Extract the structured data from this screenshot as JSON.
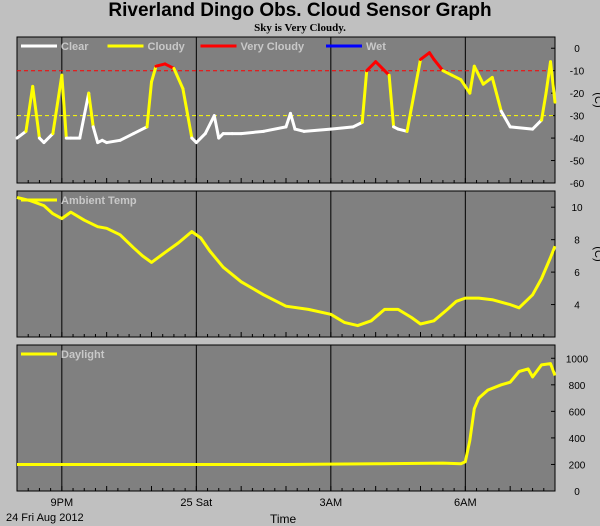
{
  "header": {
    "title": "Riverland Dingo Obs. Cloud Sensor Graph",
    "subtitle": "Sky is Very Cloudy."
  },
  "footer": {
    "date": "24 Fri Aug 2012",
    "time_label": "Time"
  },
  "colors": {
    "background": "#c0c0c0",
    "plot_bg": "#808080",
    "grid": "#000000",
    "clear": "#ffffff",
    "cloudy": "#ffff00",
    "very_cloudy": "#ff0000",
    "wet": "#0000ff",
    "threshold_very_cloudy": "#ff0000",
    "threshold_cloudy": "#ffff00"
  },
  "chart_data": [
    {
      "type": "line",
      "name": "sky-temperature",
      "legend": [
        "Clear",
        "Cloudy",
        "Very Cloudy",
        "Wet"
      ],
      "ylabel": "(C)",
      "yticks": [
        0,
        -10,
        -20,
        -30,
        -40,
        -50,
        -60
      ],
      "ylim": [
        -60,
        5
      ],
      "x_major_ticks": [
        {
          "x": 1.0,
          "label": "9PM"
        },
        {
          "x": 4.0,
          "label": "25 Sat"
        },
        {
          "x": 7.0,
          "label": "3AM"
        },
        {
          "x": 10.0,
          "label": "6AM"
        }
      ],
      "xlim": [
        0,
        12.0
      ],
      "thresholds": [
        {
          "y": -10,
          "kind": "very_cloudy"
        },
        {
          "y": -30,
          "kind": "cloudy"
        }
      ],
      "x": [
        0.0,
        0.2,
        0.35,
        0.5,
        0.6,
        0.8,
        1.0,
        1.1,
        1.2,
        1.4,
        1.6,
        1.7,
        1.8,
        1.9,
        2.0,
        2.3,
        2.6,
        2.9,
        3.0,
        3.1,
        3.3,
        3.5,
        3.7,
        3.9,
        4.0,
        4.2,
        4.4,
        4.5,
        4.6,
        4.8,
        5.0,
        5.5,
        6.0,
        6.1,
        6.2,
        6.4,
        7.0,
        7.5,
        7.7,
        7.8,
        8.0,
        8.3,
        8.4,
        8.5,
        8.7,
        9.0,
        9.2,
        9.3,
        9.5,
        9.7,
        9.9,
        10.1,
        10.2,
        10.4,
        10.6,
        10.8,
        11.0,
        11.5,
        11.7,
        11.8,
        11.9,
        12.0
      ],
      "values": [
        -40,
        -37,
        -17,
        -40,
        -42,
        -38,
        -12,
        -40,
        -40,
        -40,
        -20,
        -35,
        -42,
        -41,
        -42,
        -41,
        -38,
        -35,
        -15,
        -8,
        -7,
        -9,
        -18,
        -40,
        -42,
        -38,
        -30,
        -40,
        -38,
        -38,
        -38,
        -37,
        -35,
        -29,
        -36,
        -37,
        -36,
        -35,
        -33,
        -10,
        -6,
        -12,
        -35,
        -36,
        -37,
        -5,
        -2,
        -5,
        -10,
        -12,
        -14,
        -20,
        -8,
        -16,
        -13,
        -28,
        -35,
        -36,
        -32,
        -20,
        -6,
        -24
      ]
    },
    {
      "type": "line",
      "name": "ambient-temperature",
      "legend": [
        "Ambient Temp"
      ],
      "ylabel": "(C)",
      "yticks": [
        4,
        6,
        8,
        10
      ],
      "ylim": [
        2,
        11
      ],
      "x_major_ticks": [
        {
          "x": 1.0,
          "label": "9PM"
        },
        {
          "x": 4.0,
          "label": "25 Sat"
        },
        {
          "x": 7.0,
          "label": "3AM"
        },
        {
          "x": 10.0,
          "label": "6AM"
        }
      ],
      "xlim": [
        0,
        12.0
      ],
      "x": [
        0.0,
        0.3,
        0.6,
        0.8,
        1.0,
        1.2,
        1.5,
        1.8,
        2.0,
        2.3,
        2.6,
        2.8,
        3.0,
        3.3,
        3.6,
        3.9,
        4.1,
        4.3,
        4.6,
        5.0,
        5.5,
        6.0,
        6.5,
        7.0,
        7.3,
        7.6,
        7.9,
        8.2,
        8.5,
        8.8,
        9.0,
        9.3,
        9.6,
        9.8,
        10.0,
        10.3,
        10.6,
        11.0,
        11.2,
        11.5,
        11.7,
        11.9,
        12.0
      ],
      "values": [
        10.6,
        10.4,
        10.1,
        9.6,
        9.3,
        9.7,
        9.2,
        8.8,
        8.7,
        8.3,
        7.5,
        7.0,
        6.6,
        7.2,
        7.8,
        8.5,
        8.1,
        7.3,
        6.3,
        5.4,
        4.6,
        3.9,
        3.7,
        3.4,
        2.9,
        2.7,
        3.0,
        3.7,
        3.7,
        3.2,
        2.8,
        3.0,
        3.7,
        4.2,
        4.4,
        4.4,
        4.3,
        4.0,
        3.8,
        4.6,
        5.6,
        6.9,
        7.6
      ]
    },
    {
      "type": "line",
      "name": "daylight",
      "legend": [
        "Daylight"
      ],
      "yticks": [
        0,
        200,
        400,
        600,
        800,
        1000
      ],
      "ylim": [
        0,
        1100
      ],
      "x_major_ticks": [
        {
          "x": 1.0,
          "label": "9PM"
        },
        {
          "x": 4.0,
          "label": "25 Sat"
        },
        {
          "x": 7.0,
          "label": "3AM"
        },
        {
          "x": 10.0,
          "label": "6AM"
        }
      ],
      "xlim": [
        0,
        12.0
      ],
      "x": [
        0.0,
        2.0,
        4.0,
        6.0,
        8.0,
        9.5,
        9.9,
        10.0,
        10.1,
        10.2,
        10.3,
        10.5,
        10.8,
        11.0,
        11.2,
        11.4,
        11.5,
        11.7,
        11.9,
        12.0
      ],
      "values": [
        200,
        200,
        200,
        200,
        205,
        210,
        205,
        220,
        380,
        620,
        700,
        760,
        800,
        820,
        900,
        920,
        860,
        950,
        960,
        870
      ]
    }
  ]
}
